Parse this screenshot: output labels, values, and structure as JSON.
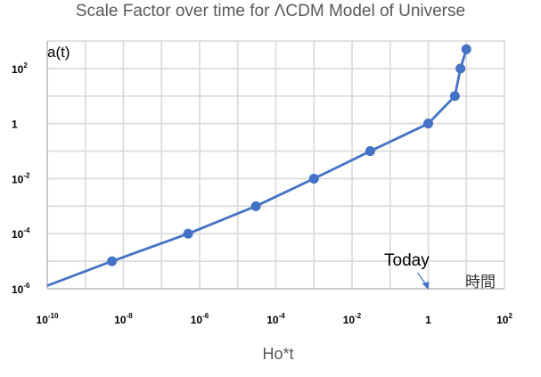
{
  "chart_data": {
    "type": "line",
    "title": "Scale Factor over time for ΛCDM Model of Universe",
    "xlabel": "Ho*t",
    "ylabel": "a(t)",
    "x_scale": "log",
    "y_scale": "log",
    "xlim": [
      1e-10,
      100
    ],
    "ylim": [
      1e-06,
      1000
    ],
    "grid": true,
    "x_ticks": [
      {
        "base": "10",
        "exp": "-10"
      },
      {
        "base": "10",
        "exp": "-8"
      },
      {
        "base": "10",
        "exp": "-6"
      },
      {
        "base": "10",
        "exp": "-4"
      },
      {
        "base": "10",
        "exp": "-2"
      },
      {
        "base": "1",
        "exp": ""
      },
      {
        "base": "10",
        "exp": "2"
      }
    ],
    "y_ticks": [
      {
        "base": "10",
        "exp": "2"
      },
      {
        "base": "1",
        "exp": ""
      },
      {
        "base": "10",
        "exp": "-2"
      },
      {
        "base": "10",
        "exp": "-4"
      },
      {
        "base": "10",
        "exp": "-6"
      }
    ],
    "series": [
      {
        "color": "#4472C4",
        "points": [
          {
            "x": 1e-10,
            "y": 1.3e-06,
            "marker": false
          },
          {
            "x": 5e-09,
            "y": 1e-05,
            "marker": true
          },
          {
            "x": 5e-07,
            "y": 0.0001,
            "marker": true
          },
          {
            "x": 3e-05,
            "y": 0.001,
            "marker": true
          },
          {
            "x": 0.001,
            "y": 0.01,
            "marker": true
          },
          {
            "x": 0.03,
            "y": 0.1,
            "marker": true
          },
          {
            "x": 1,
            "y": 1,
            "marker": true
          },
          {
            "x": 5,
            "y": 10,
            "marker": true
          },
          {
            "x": 7,
            "y": 100,
            "marker": true
          },
          {
            "x": 10,
            "y": 500,
            "marker": true
          }
        ]
      }
    ],
    "annotations": {
      "today_label": "Today",
      "jikan_label": "時間"
    }
  }
}
